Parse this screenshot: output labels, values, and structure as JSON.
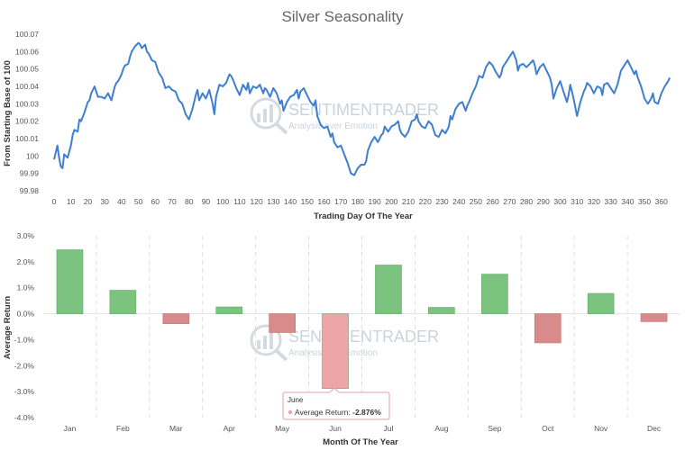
{
  "chart_data": [
    {
      "type": "line",
      "title": "Silver Seasonality",
      "xlabel": "Trading Day Of The Year",
      "ylabel": "From Starting Base of 100",
      "xlim": [
        0,
        366
      ],
      "ylim": [
        99.98,
        100.07
      ],
      "x_ticks": [
        0,
        10,
        20,
        30,
        40,
        50,
        60,
        70,
        80,
        90,
        100,
        110,
        120,
        130,
        140,
        150,
        160,
        170,
        180,
        190,
        200,
        210,
        220,
        230,
        240,
        250,
        260,
        270,
        280,
        290,
        300,
        310,
        320,
        330,
        340,
        350,
        360
      ],
      "y_ticks": [
        99.98,
        99.99,
        100,
        100.01,
        100.02,
        100.03,
        100.04,
        100.05,
        100.06,
        100.07
      ],
      "color": "#3f7fd0",
      "series": [
        {
          "name": "Silver",
          "x": [
            0,
            2,
            3,
            4,
            5,
            6,
            8,
            10,
            11,
            12,
            14,
            15,
            16,
            18,
            20,
            21,
            22,
            24,
            25,
            26,
            28,
            30,
            32,
            34,
            36,
            37,
            38,
            40,
            41,
            42,
            44,
            45,
            46,
            48,
            50,
            51,
            52,
            54,
            55,
            56,
            58,
            60,
            62,
            64,
            65,
            66,
            68,
            70,
            72,
            74,
            76,
            78,
            80,
            82,
            84,
            85,
            86,
            88,
            90,
            92,
            94,
            95,
            96,
            98,
            100,
            102,
            104,
            105,
            106,
            108,
            110,
            112,
            114,
            115,
            116,
            118,
            120,
            122,
            124,
            125,
            126,
            128,
            130,
            132,
            134,
            135,
            136,
            138,
            140,
            142,
            144,
            145,
            146,
            148,
            150,
            152,
            154,
            155,
            156,
            158,
            160,
            162,
            164,
            165,
            166,
            168,
            170,
            172,
            174,
            175,
            176,
            178,
            180,
            182,
            184,
            185,
            186,
            188,
            190,
            192,
            194,
            195,
            196,
            198,
            200,
            202,
            204,
            205,
            206,
            208,
            210,
            212,
            214,
            215,
            216,
            218,
            220,
            222,
            224,
            225,
            226,
            228,
            230,
            232,
            234,
            235,
            236,
            238,
            240,
            242,
            244,
            245,
            246,
            248,
            250,
            252,
            254,
            255,
            256,
            258,
            260,
            262,
            264,
            265,
            266,
            268,
            270,
            272,
            274,
            275,
            276,
            278,
            280,
            282,
            284,
            285,
            286,
            288,
            290,
            292,
            294,
            295,
            296,
            298,
            300,
            302,
            304,
            305,
            306,
            308,
            310,
            312,
            314,
            315,
            316,
            318,
            320,
            322,
            324,
            325,
            326,
            328,
            330,
            332,
            334,
            335,
            336,
            338,
            340,
            342,
            344,
            345,
            346,
            348,
            350,
            352,
            354,
            355,
            356,
            358,
            360,
            362,
            364,
            365
          ],
          "y": [
            99.998,
            100.006,
            99.999,
            99.994,
            99.993,
            100.001,
            99.999,
            100.006,
            100.012,
            100.015,
            100.014,
            100.021,
            100.02,
            100.025,
            100.031,
            100.032,
            100.036,
            100.04,
            100.037,
            100.034,
            100.034,
            100.033,
            100.036,
            100.032,
            100.04,
            100.042,
            100.043,
            100.047,
            100.05,
            100.052,
            100.053,
            100.057,
            100.06,
            100.063,
            100.065,
            100.064,
            100.062,
            100.064,
            100.06,
            100.059,
            100.055,
            100.054,
            100.048,
            100.045,
            100.042,
            100.039,
            100.04,
            100.038,
            100.037,
            100.032,
            100.03,
            100.024,
            100.021,
            100.027,
            100.035,
            100.038,
            100.032,
            100.036,
            100.033,
            100.038,
            100.03,
            100.024,
            100.034,
            100.041,
            100.04,
            100.042,
            100.047,
            100.046,
            100.044,
            100.039,
            100.035,
            100.041,
            100.038,
            100.042,
            100.036,
            100.04,
            100.039,
            100.041,
            100.036,
            100.039,
            100.038,
            100.034,
            100.039,
            100.036,
            100.03,
            100.032,
            100.026,
            100.031,
            100.034,
            100.035,
            100.038,
            100.033,
            100.037,
            100.039,
            100.035,
            100.031,
            100.029,
            100.032,
            100.023,
            100.018,
            100.016,
            100.017,
            100.011,
            100.013,
            100.008,
            100.005,
            100.006,
            100.001,
            99.996,
            99.993,
            99.99,
            99.989,
            99.993,
            99.995,
            99.995,
            99.997,
            100.003,
            100.008,
            100.011,
            100.008,
            100.012,
            100.013,
            100.017,
            100.014,
            100.017,
            100.018,
            100.02,
            100.015,
            100.013,
            100.011,
            100.014,
            100.02,
            100.021,
            100.024,
            100.02,
            100.017,
            100.016,
            100.02,
            100.018,
            100.015,
            100.012,
            100.011,
            100.015,
            100.013,
            100.017,
            100.023,
            100.021,
            100.027,
            100.03,
            100.031,
            100.026,
            100.029,
            100.031,
            100.036,
            100.04,
            100.046,
            100.045,
            100.048,
            100.051,
            100.054,
            100.052,
            100.048,
            100.045,
            100.047,
            100.051,
            100.054,
            100.057,
            100.06,
            100.055,
            100.049,
            100.052,
            100.053,
            100.051,
            100.053,
            100.055,
            100.052,
            100.047,
            100.051,
            100.053,
            100.049,
            100.045,
            100.041,
            100.033,
            100.039,
            100.043,
            100.037,
            100.031,
            100.035,
            100.041,
            100.033,
            100.023,
            100.031,
            100.037,
            100.039,
            100.042,
            100.04,
            100.036,
            100.04,
            100.039,
            100.035,
            100.041,
            100.042,
            100.039,
            100.036,
            100.041,
            100.045,
            100.049,
            100.052,
            100.055,
            100.051,
            100.047,
            100.049,
            100.045,
            100.04,
            100.033,
            100.03,
            100.033,
            100.036,
            100.031,
            100.03,
            100.036,
            100.04,
            100.043,
            100.045
          ]
        }
      ]
    },
    {
      "type": "bar",
      "xlabel": "Month Of The Year",
      "ylabel": "Average Return",
      "ylim": [
        -4.0,
        3.0
      ],
      "y_ticks": [
        -4,
        -3,
        -2,
        -1,
        0,
        1,
        2,
        3
      ],
      "y_tick_labels": [
        "-4.0%",
        "-3.0%",
        "-2.0%",
        "-1.0%",
        "0.0%",
        "1.0%",
        "2.0%",
        "3.0%"
      ],
      "categories": [
        "Jan",
        "Feb",
        "Mar",
        "Apr",
        "May",
        "Jun",
        "Jul",
        "Aug",
        "Sep",
        "Oct",
        "Nov",
        "Dec"
      ],
      "values": [
        2.46,
        0.9,
        -0.38,
        0.26,
        -0.72,
        -2.876,
        1.87,
        0.24,
        1.52,
        -1.12,
        0.78,
        -0.3
      ],
      "positive_color": "#7cc37f",
      "negative_color": "#d98b8b",
      "highlight_color": "#eda5a5",
      "highlight_index": 5,
      "tooltip": {
        "title": "June",
        "label": "Average Return: ",
        "value": "-2.876%"
      }
    }
  ],
  "watermark": {
    "brand": "SENTIMENTRADER",
    "tagline": "Analysis over Emotion"
  }
}
